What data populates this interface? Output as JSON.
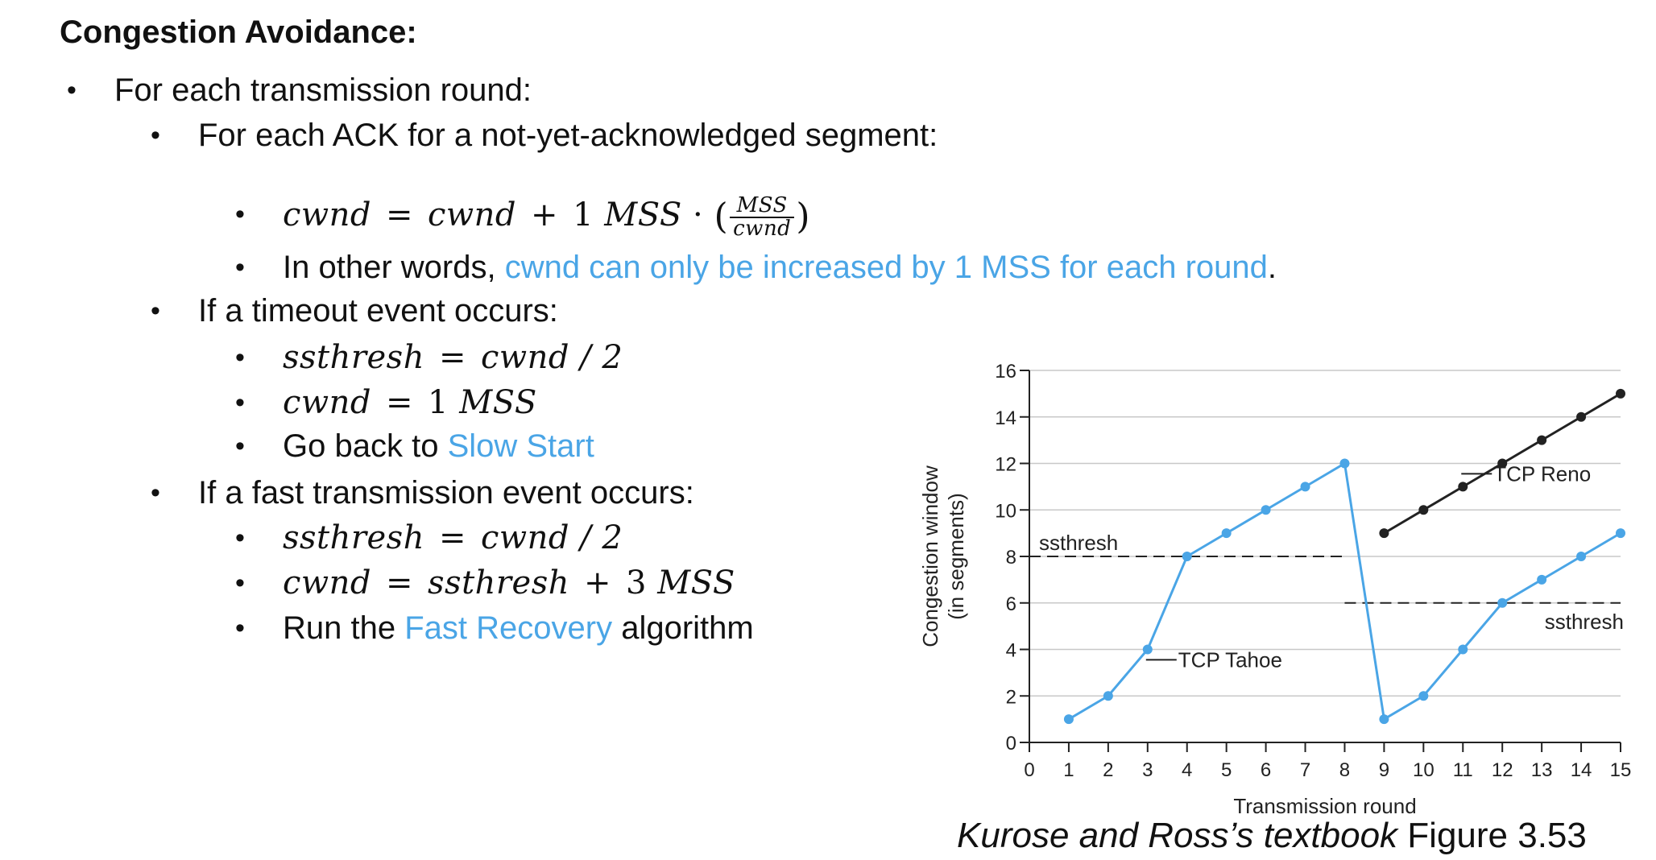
{
  "heading": "Congestion Avoidance:",
  "bullets": {
    "round": "For each transmission round:",
    "ack": "For each ACK for a not-yet-acknowledged segment:",
    "formula1": {
      "lhs": "cwnd",
      "eq": "=",
      "rhs_a": "cwnd",
      "plus": "+",
      "one": "1",
      "mss": "MSS",
      "dot": "·",
      "frac_num": "MSS",
      "frac_den": "cwnd"
    },
    "other_words_prefix": "In other words, ",
    "other_words_highlight": "cwnd can only be increased by 1 MSS for each round",
    "other_words_suffix": ".",
    "timeout": "If a timeout event occurs:",
    "t_formula1": {
      "lhs": "ssthresh",
      "eq": "=",
      "rhs": "cwnd / 2"
    },
    "t_formula2": {
      "lhs": "cwnd",
      "eq": "=",
      "one": "1",
      "mss": "MSS"
    },
    "goback_prefix": "Go back to ",
    "goback_highlight": "Slow Start",
    "fast": "If a fast transmission event occurs:",
    "f_formula1": {
      "lhs": "ssthresh",
      "eq": "=",
      "rhs": "cwnd / 2"
    },
    "f_formula2": {
      "lhs": "cwnd",
      "eq": "=",
      "rhs_a": "ssthresh",
      "plus": "+",
      "three": "3",
      "mss": "MSS"
    },
    "run_prefix": "Run the ",
    "run_highlight": "Fast Recovery",
    "run_suffix": " algorithm"
  },
  "caption": {
    "italic": "Kurose and Ross’s textbook",
    "normal": " Figure 3.53"
  },
  "colors": {
    "highlight": "#4aa5e6",
    "tahoe": "#4aa5e6",
    "reno": "#222222",
    "grid": "#c8c8c8"
  },
  "chart_data": {
    "type": "line",
    "xlabel": "Transmission round",
    "ylabel": "Congestion window",
    "ylabel2": "(in segments)",
    "xlim": [
      0,
      15
    ],
    "ylim": [
      0,
      16
    ],
    "xticks": [
      0,
      1,
      2,
      3,
      4,
      5,
      6,
      7,
      8,
      9,
      10,
      11,
      12,
      13,
      14,
      15
    ],
    "yticks": [
      0,
      2,
      4,
      6,
      8,
      10,
      12,
      14,
      16
    ],
    "grid": true,
    "series": [
      {
        "name": "TCP Tahoe",
        "x": [
          1,
          2,
          3,
          4,
          5,
          6,
          7,
          8,
          9,
          10,
          11,
          12,
          13,
          14,
          15
        ],
        "y": [
          1,
          2,
          4,
          8,
          9,
          10,
          11,
          12,
          1,
          2,
          4,
          6,
          7,
          8,
          9
        ]
      },
      {
        "name": "TCP Reno",
        "x": [
          9,
          10,
          11,
          12,
          13,
          14,
          15
        ],
        "y": [
          9,
          10,
          11,
          12,
          13,
          14,
          15
        ]
      }
    ],
    "thresholds": [
      {
        "label": "ssthresh",
        "y": 8,
        "x_from": 0,
        "x_to": 8
      },
      {
        "label": "ssthresh",
        "y": 6,
        "x_from": 8,
        "x_to": 15
      }
    ],
    "annotations": [
      {
        "text": "TCP Tahoe",
        "x": 3,
        "y": 3
      },
      {
        "text": "TCP Reno",
        "x": 11,
        "y": 11
      }
    ]
  }
}
